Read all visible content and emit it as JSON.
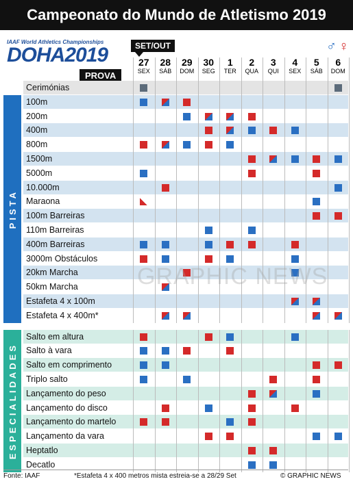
{
  "title": "Campeonato do Mundo de Atletismo 2019",
  "logo": {
    "subtitle": "IAAF World Athletics Championships",
    "main": "DOHA2019"
  },
  "prova_label": "PROVA",
  "setout_label": "SET/OUT",
  "dates": [
    {
      "n": "27",
      "d": "SEX"
    },
    {
      "n": "28",
      "d": "SÁB"
    },
    {
      "n": "29",
      "d": "DOM"
    },
    {
      "n": "30",
      "d": "SEG"
    },
    {
      "n": "1",
      "d": "TER"
    },
    {
      "n": "2",
      "d": "QUA"
    },
    {
      "n": "3",
      "d": "QUI"
    },
    {
      "n": "4",
      "d": "SEX"
    },
    {
      "n": "5",
      "d": "SÁB"
    },
    {
      "n": "6",
      "d": "DOM"
    }
  ],
  "sections": {
    "pista": "PISTA",
    "especialidades": "ESPECIALIDADES"
  },
  "ceremonies": {
    "label": "Cerimónias",
    "marks": [
      "c",
      "",
      "",
      "",
      "",
      "",
      "",
      "",
      "",
      "c"
    ]
  },
  "track": [
    {
      "label": "100m",
      "marks": [
        "m",
        "x",
        "w",
        "",
        "",
        "",
        "",
        "",
        "",
        ""
      ]
    },
    {
      "label": "200m",
      "marks": [
        "",
        "",
        "m",
        "x",
        "x",
        "w",
        "",
        "",
        "",
        ""
      ]
    },
    {
      "label": "400m",
      "marks": [
        "",
        "",
        "",
        "w",
        "x",
        "m",
        "w",
        "m",
        "",
        ""
      ]
    },
    {
      "label": "800m",
      "marks": [
        "w",
        "x",
        "m",
        "w",
        "m",
        "",
        "",
        "",
        "",
        ""
      ]
    },
    {
      "label": "1500m",
      "marks": [
        "",
        "",
        "",
        "",
        "",
        "w",
        "x",
        "m",
        "w",
        "m"
      ]
    },
    {
      "label": "5000m",
      "marks": [
        "m",
        "",
        "",
        "",
        "",
        "w",
        "",
        "",
        "w",
        ""
      ]
    },
    {
      "label": "10.000m",
      "marks": [
        "",
        "w",
        "",
        "",
        "",
        "",
        "",
        "",
        "",
        "m"
      ]
    },
    {
      "label": "Maraona",
      "marks": [
        "mw",
        "",
        "",
        "",
        "",
        "",
        "",
        "",
        "m",
        ""
      ]
    },
    {
      "label": "100m Barreiras",
      "marks": [
        "",
        "",
        "",
        "",
        "",
        "",
        "",
        "",
        "w",
        "w"
      ]
    },
    {
      "label": "110m Barreiras",
      "marks": [
        "",
        "",
        "",
        "m",
        "",
        "m",
        "",
        "",
        "",
        ""
      ]
    },
    {
      "label": "400m Barreiras",
      "marks": [
        "m",
        "m",
        "",
        "m",
        "w",
        "w",
        "",
        "w",
        "",
        ""
      ]
    },
    {
      "label": "3000m Obstáculos",
      "marks": [
        "w",
        "m",
        "",
        "w",
        "m",
        "",
        "",
        "m",
        "",
        ""
      ]
    },
    {
      "label": "20km Marcha",
      "marks": [
        "",
        "",
        "w",
        "",
        "",
        "",
        "",
        "m",
        "",
        ""
      ]
    },
    {
      "label": "50km Marcha",
      "marks": [
        "",
        "x",
        "",
        "",
        "",
        "",
        "",
        "",
        "",
        ""
      ]
    },
    {
      "label": "Estafeta 4 x 100m",
      "marks": [
        "",
        "",
        "",
        "",
        "",
        "",
        "",
        "x",
        "x",
        ""
      ]
    },
    {
      "label": "Estafeta 4 x 400m*",
      "marks": [
        "",
        "x",
        "x",
        "",
        "",
        "",
        "",
        "",
        "x",
        "x"
      ]
    }
  ],
  "field": [
    {
      "label": "Salto em altura",
      "marks": [
        "w",
        "",
        "",
        "w",
        "m",
        "",
        "",
        "m",
        "",
        ""
      ]
    },
    {
      "label": "Salto à vara",
      "marks": [
        "m",
        "m",
        "w",
        "",
        "w",
        "",
        "",
        "",
        "",
        ""
      ]
    },
    {
      "label": "Salto em comprimento",
      "marks": [
        "m",
        "m",
        "",
        "",
        "",
        "",
        "",
        "",
        "w",
        "w"
      ]
    },
    {
      "label": "Triplo salto",
      "marks": [
        "m",
        "",
        "m",
        "",
        "",
        "",
        "w",
        "",
        "w",
        ""
      ]
    },
    {
      "label": "Lançamento do peso",
      "marks": [
        "",
        "",
        "",
        "",
        "",
        "w",
        "x",
        "",
        "m",
        ""
      ]
    },
    {
      "label": "Lançamento do disco",
      "marks": [
        "",
        "w",
        "",
        "m",
        "",
        "w",
        "",
        "w",
        "",
        ""
      ]
    },
    {
      "label": "Lançamento do martelo",
      "marks": [
        "w",
        "w",
        "",
        "",
        "m",
        "w",
        "",
        "",
        "",
        ""
      ]
    },
    {
      "label": "Lançamento da vara",
      "marks": [
        "",
        "",
        "",
        "w",
        "w",
        "",
        "",
        "",
        "m",
        "m"
      ]
    },
    {
      "label": "Heptatlo",
      "marks": [
        "",
        "",
        "",
        "",
        "",
        "w",
        "w",
        "",
        "",
        ""
      ]
    },
    {
      "label": "Decatlo",
      "marks": [
        "",
        "",
        "",
        "",
        "",
        "m",
        "m",
        "",
        "",
        ""
      ]
    }
  ],
  "footer": {
    "source": "Fonte: IAAF",
    "note": "*Estafeta 4 x 400 metros mista estreia-se a 28/29 Set",
    "credit": "© GRAPHIC NEWS"
  },
  "watermark": "GRAPHIC NEWS",
  "colors": {
    "men": "#2a6fc2",
    "women": "#d42a2a",
    "track_band": "#1f6fbf",
    "field_band": "#2bb09a",
    "track_row": "#d3e3f0",
    "field_row": "#d4ede6"
  }
}
